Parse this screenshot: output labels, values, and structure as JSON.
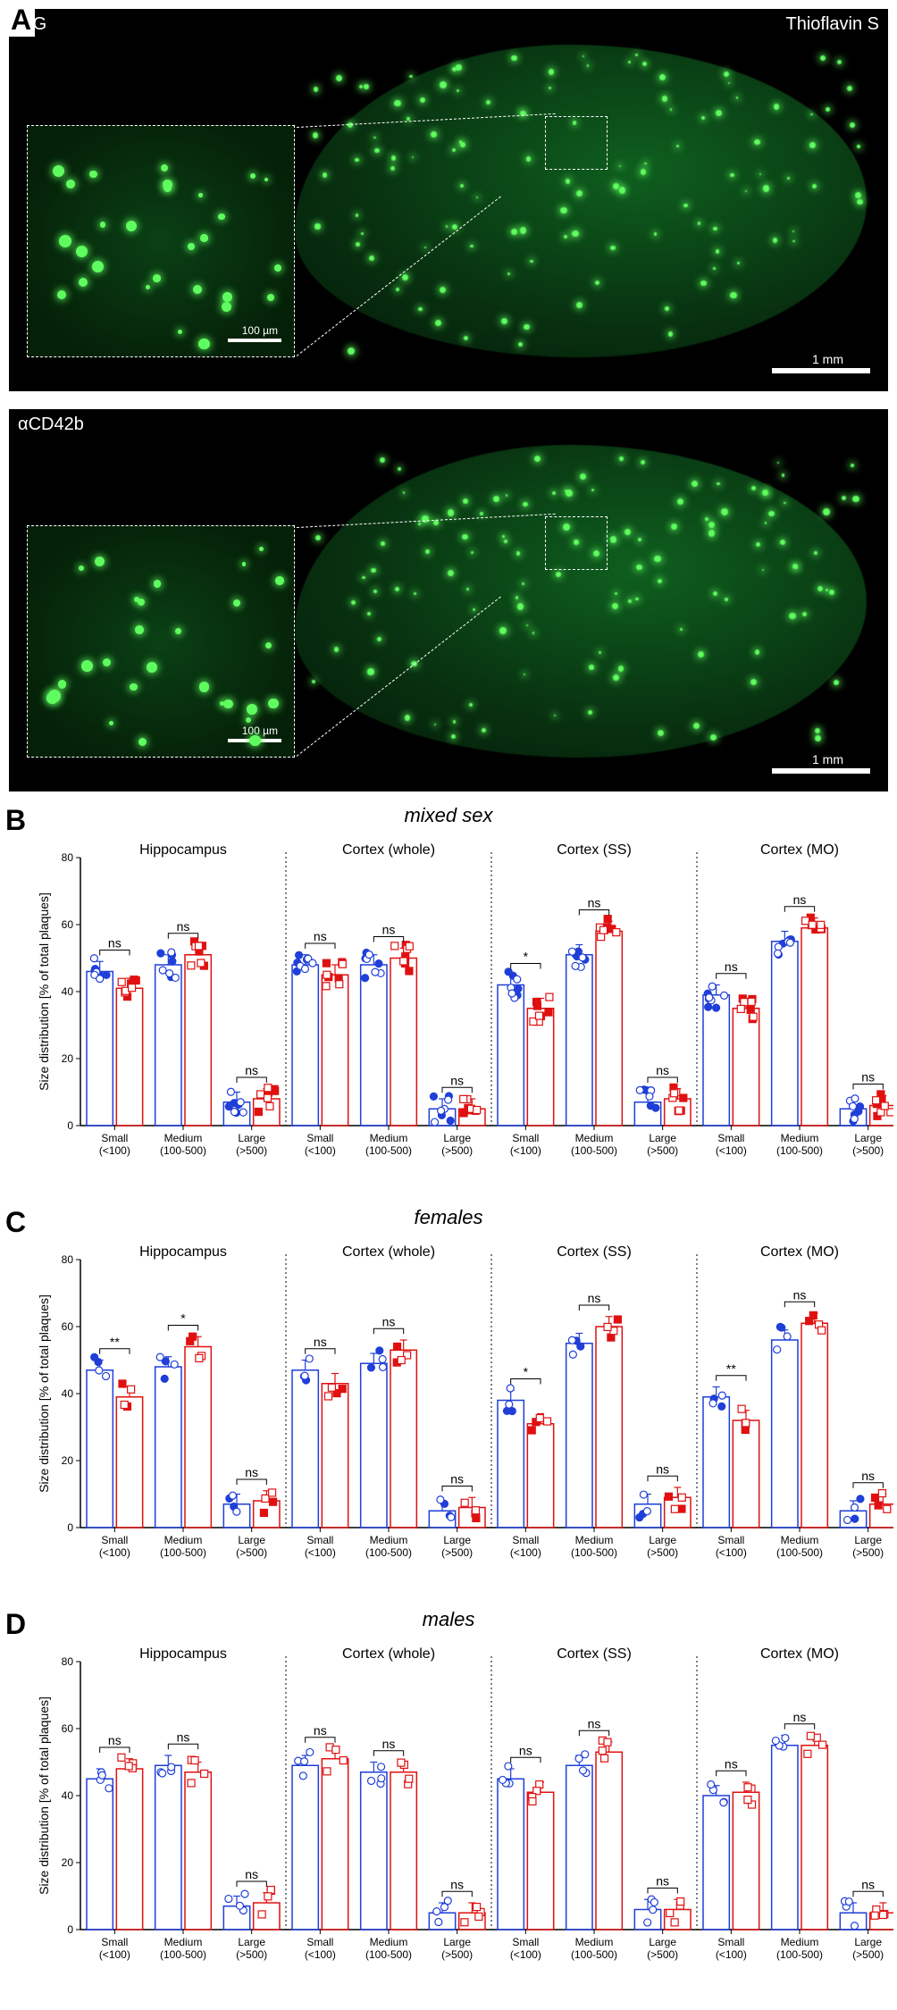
{
  "colors": {
    "igG": "#1f3fd8",
    "aCD42b": "#e01010",
    "igG_fill": "#ffffff",
    "aCD42b_fill": "#ffffff",
    "axis": "#000000",
    "grid": "#ffffff",
    "bg": "#ffffff",
    "micro_bg": "#000000",
    "plaque": "#5ffc5f"
  },
  "panelA": {
    "label": "A",
    "top_left_label": "IgG",
    "top_right_label": "Thioflavin S",
    "bot_left_label": "αCD42b",
    "inset_scalebar": "100 µm",
    "main_scalebar": "1 mm"
  },
  "charts": {
    "ylabel": "Size distribution [% of total plaques]",
    "ylim": [
      0,
      80
    ],
    "yticks": [
      0,
      20,
      40,
      60,
      80
    ],
    "regions": [
      "Hippocampus",
      "Cortex (whole)",
      "Cortex (SS)",
      "Cortex (MO)"
    ],
    "categories": [
      "Small\n(<100)",
      "Medium\n(100-500)",
      "Large\n(>500)"
    ],
    "panels": [
      {
        "id": "B",
        "title": "mixed sex",
        "sig": [
          [
            "ns",
            "ns",
            "ns"
          ],
          [
            "ns",
            "ns",
            "ns"
          ],
          [
            "*",
            "ns",
            "ns"
          ],
          [
            "ns",
            "ns",
            "ns"
          ]
        ],
        "data": [
          {
            "IgG": [
              46,
              48,
              7
            ],
            "aCD42b": [
              41,
              51,
              8
            ]
          },
          {
            "IgG": [
              48,
              48,
              5
            ],
            "aCD42b": [
              45,
              50,
              5
            ]
          },
          {
            "IgG": [
              42,
              51,
              7
            ],
            "aCD42b": [
              35,
              58,
              8
            ]
          },
          {
            "IgG": [
              39,
              55,
              5
            ],
            "aCD42b": [
              35,
              59,
              6
            ]
          }
        ],
        "n_points": 8,
        "marker_closed": true
      },
      {
        "id": "C",
        "title": "females",
        "sig": [
          [
            "**",
            "*",
            "ns"
          ],
          [
            "ns",
            "ns",
            "ns"
          ],
          [
            "*",
            "ns",
            "ns"
          ],
          [
            "**",
            "ns",
            "ns"
          ]
        ],
        "data": [
          {
            "IgG": [
              47,
              48,
              7
            ],
            "aCD42b": [
              39,
              54,
              8
            ]
          },
          {
            "IgG": [
              47,
              49,
              5
            ],
            "aCD42b": [
              43,
              53,
              6
            ]
          },
          {
            "IgG": [
              38,
              55,
              7
            ],
            "aCD42b": [
              31,
              60,
              9
            ]
          },
          {
            "IgG": [
              39,
              56,
              5
            ],
            "aCD42b": [
              32,
              61,
              7
            ]
          }
        ],
        "n_points": 4,
        "marker_closed": true
      },
      {
        "id": "D",
        "title": "males",
        "sig": [
          [
            "ns",
            "ns",
            "ns"
          ],
          [
            "ns",
            "ns",
            "ns"
          ],
          [
            "ns",
            "ns",
            "ns"
          ],
          [
            "ns",
            "ns",
            "ns"
          ]
        ],
        "data": [
          {
            "IgG": [
              45,
              49,
              7
            ],
            "aCD42b": [
              48,
              47,
              8
            ]
          },
          {
            "IgG": [
              49,
              47,
              5
            ],
            "aCD42b": [
              51,
              47,
              5
            ]
          },
          {
            "IgG": [
              45,
              49,
              6
            ],
            "aCD42b": [
              41,
              53,
              6
            ]
          },
          {
            "IgG": [
              40,
              55,
              5
            ],
            "aCD42b": [
              41,
              55,
              5
            ]
          }
        ],
        "n_points": 4,
        "marker_closed": false
      }
    ],
    "bar_width": 0.35,
    "error_bar": 3,
    "label_fontsize": 14,
    "tick_fontsize": 12,
    "title_fontsize": 22,
    "marker_size": 4
  }
}
